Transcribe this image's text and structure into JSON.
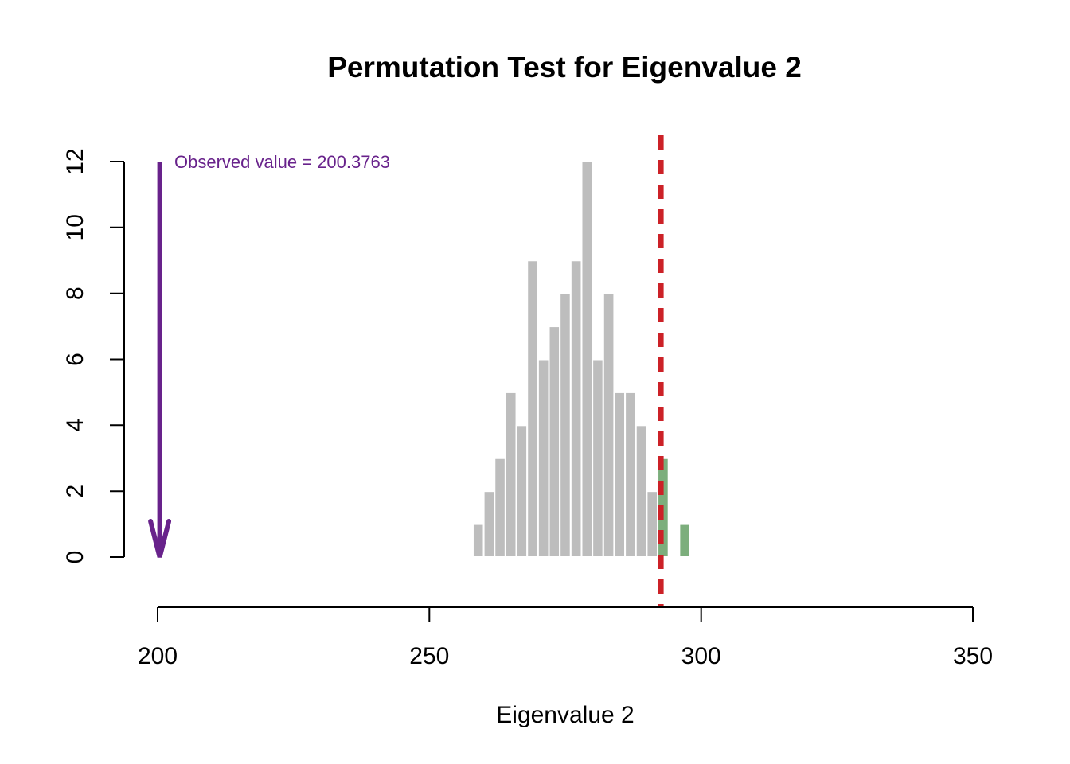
{
  "figure": {
    "background": "#FFFFFF"
  },
  "chart_data": {
    "type": "bar",
    "subtype": "histogram",
    "title": "Permutation Test for Eigenvalue 2",
    "xlabel": "Eigenvalue 2",
    "ylabel": "",
    "xlim": [
      200,
      350
    ],
    "ylim": [
      0,
      12
    ],
    "x_ticks": [
      200,
      250,
      300,
      350
    ],
    "y_ticks": [
      0,
      2,
      4,
      6,
      8,
      10,
      12
    ],
    "grid": false,
    "legend_position": "none",
    "bin_width": 2,
    "bins": [
      {
        "start": 258,
        "count": 1,
        "significant": false
      },
      {
        "start": 260,
        "count": 2,
        "significant": false
      },
      {
        "start": 262,
        "count": 3,
        "significant": false
      },
      {
        "start": 264,
        "count": 5,
        "significant": false
      },
      {
        "start": 266,
        "count": 4,
        "significant": false
      },
      {
        "start": 268,
        "count": 9,
        "significant": false
      },
      {
        "start": 270,
        "count": 6,
        "significant": false
      },
      {
        "start": 272,
        "count": 7,
        "significant": false
      },
      {
        "start": 274,
        "count": 8,
        "significant": false
      },
      {
        "start": 276,
        "count": 9,
        "significant": false
      },
      {
        "start": 278,
        "count": 12,
        "significant": false
      },
      {
        "start": 280,
        "count": 6,
        "significant": false
      },
      {
        "start": 282,
        "count": 8,
        "significant": false
      },
      {
        "start": 284,
        "count": 5,
        "significant": false
      },
      {
        "start": 286,
        "count": 5,
        "significant": false
      },
      {
        "start": 288,
        "count": 4,
        "significant": false
      },
      {
        "start": 290,
        "count": 2,
        "significant": false
      },
      {
        "start": 292,
        "count": 3,
        "significant": true
      },
      {
        "start": 294,
        "count": 0,
        "significant": true
      },
      {
        "start": 296,
        "count": 1,
        "significant": true
      }
    ],
    "threshold_line": {
      "value": 292.6,
      "style": "dashed"
    },
    "observed": {
      "value": 200.3763,
      "label": "Observed value = 200.3763"
    }
  },
  "colors": {
    "bar_default": "#BDBDBD",
    "bar_significant": "#7CAE7C",
    "bar_border": "#FFFFFF",
    "threshold": "#CC2127",
    "observed": "#68228B",
    "axis": "#000000"
  }
}
